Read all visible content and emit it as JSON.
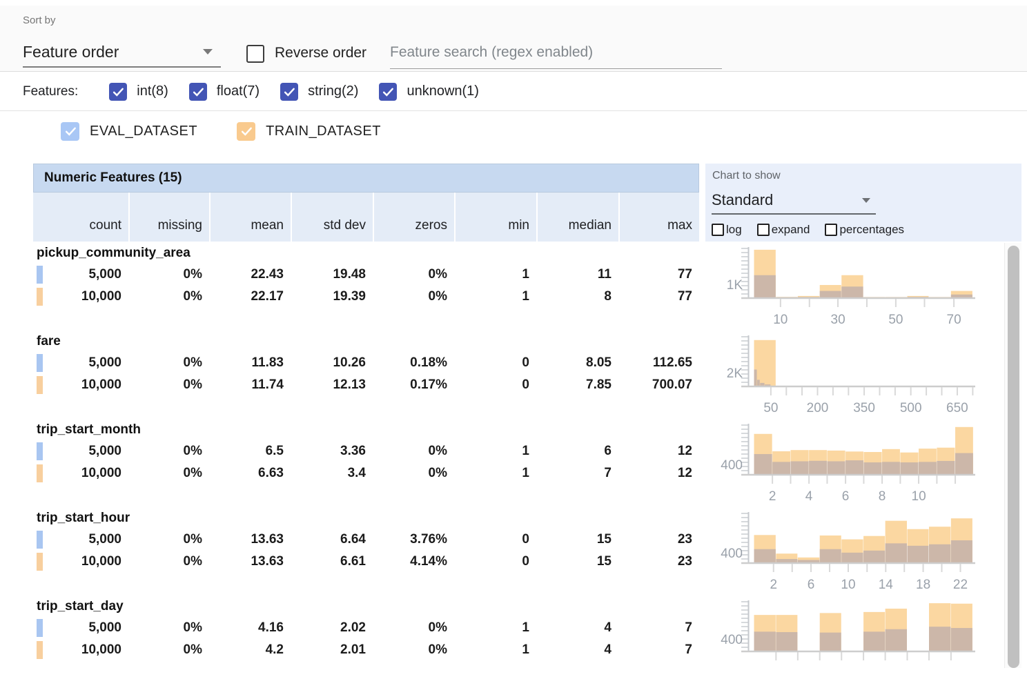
{
  "toolbar": {
    "sort_by_label": "Sort by",
    "sort_value": "Feature order",
    "reverse_label": "Reverse order",
    "search_placeholder": "Feature search (regex enabled)"
  },
  "filters": {
    "label": "Features:",
    "types": [
      {
        "label": "int(8)",
        "checked": true
      },
      {
        "label": "float(7)",
        "checked": true
      },
      {
        "label": "string(2)",
        "checked": true
      },
      {
        "label": "unknown(1)",
        "checked": true
      }
    ]
  },
  "datasets": [
    {
      "name": "EVAL_DATASET",
      "color": "#a9c7f5",
      "count_label": "5,000"
    },
    {
      "name": "TRAIN_DATASET",
      "color": "#f9ca8e",
      "count_label": "10,000"
    }
  ],
  "table": {
    "title": "Numeric Features (15)",
    "columns": [
      "count",
      "missing",
      "mean",
      "std dev",
      "zeros",
      "min",
      "median",
      "max"
    ],
    "rows": [
      {
        "feature": "pickup_community_area",
        "eval": [
          "5,000",
          "0%",
          "22.43",
          "19.48",
          "0%",
          "1",
          "11",
          "77"
        ],
        "train": [
          "10,000",
          "0%",
          "22.17",
          "19.39",
          "0%",
          "1",
          "8",
          "77"
        ]
      },
      {
        "feature": "fare",
        "eval": [
          "5,000",
          "0%",
          "11.83",
          "10.26",
          "0.18%",
          "0",
          "8.05",
          "112.65"
        ],
        "train": [
          "10,000",
          "0%",
          "11.74",
          "12.13",
          "0.17%",
          "0",
          "7.85",
          "700.07"
        ]
      },
      {
        "feature": "trip_start_month",
        "eval": [
          "5,000",
          "0%",
          "6.5",
          "3.36",
          "0%",
          "1",
          "6",
          "12"
        ],
        "train": [
          "10,000",
          "0%",
          "6.63",
          "3.4",
          "0%",
          "1",
          "7",
          "12"
        ]
      },
      {
        "feature": "trip_start_hour",
        "eval": [
          "5,000",
          "0%",
          "13.63",
          "6.64",
          "3.76%",
          "0",
          "15",
          "23"
        ],
        "train": [
          "10,000",
          "0%",
          "13.63",
          "6.61",
          "4.14%",
          "0",
          "15",
          "23"
        ]
      },
      {
        "feature": "trip_start_day",
        "eval": [
          "5,000",
          "0%",
          "4.16",
          "2.02",
          "0%",
          "1",
          "4",
          "7"
        ],
        "train": [
          "10,000",
          "0%",
          "4.2",
          "2.01",
          "0%",
          "1",
          "4",
          "7"
        ]
      }
    ]
  },
  "chart_controls": {
    "label": "Chart to show",
    "value": "Standard",
    "options": [
      "log",
      "expand",
      "percentages"
    ]
  },
  "chart_data": [
    {
      "feature": "pickup_community_area",
      "type": "histogram",
      "legend": [
        "EVAL_DATASET",
        "TRAIN_DATASET"
      ],
      "ylabel": "1K",
      "ylabel_frac": 0.27,
      "ymax": 3700,
      "xlabels": [
        {
          "t": "10",
          "f": 0.138
        },
        {
          "t": "30",
          "f": 0.394
        },
        {
          "t": "50",
          "f": 0.652
        },
        {
          "t": "70",
          "f": 0.911
        }
      ],
      "xticks": [
        0.138,
        0.267,
        0.394,
        0.523,
        0.652,
        0.78,
        0.911
      ],
      "bins": [
        {
          "x0": 0.02,
          "x1": 0.118,
          "train": 3600,
          "eval": 1680
        },
        {
          "x0": 0.118,
          "x1": 0.215,
          "train": 40,
          "eval": 15
        },
        {
          "x0": 0.215,
          "x1": 0.313,
          "train": 110,
          "eval": 35
        },
        {
          "x0": 0.313,
          "x1": 0.41,
          "train": 940,
          "eval": 490
        },
        {
          "x0": 0.41,
          "x1": 0.508,
          "train": 1680,
          "eval": 820
        },
        {
          "x0": 0.508,
          "x1": 0.605,
          "train": 30,
          "eval": 10
        },
        {
          "x0": 0.605,
          "x1": 0.703,
          "train": 30,
          "eval": 10
        },
        {
          "x0": 0.703,
          "x1": 0.8,
          "train": 110,
          "eval": 40
        },
        {
          "x0": 0.8,
          "x1": 0.898,
          "train": 30,
          "eval": 10
        },
        {
          "x0": 0.898,
          "x1": 0.995,
          "train": 490,
          "eval": 220
        }
      ]
    },
    {
      "feature": "fare",
      "type": "histogram",
      "legend": [
        "EVAL_DATASET",
        "TRAIN_DATASET"
      ],
      "ylabel": "2K",
      "ylabel_frac": 0.27,
      "ymax": 7400,
      "xlabels": [
        {
          "t": "50",
          "f": 0.095
        },
        {
          "t": "200",
          "f": 0.303
        },
        {
          "t": "350",
          "f": 0.511
        },
        {
          "t": "500",
          "f": 0.719
        },
        {
          "t": "650",
          "f": 0.926
        }
      ],
      "xticks": [
        0.095,
        0.164,
        0.234,
        0.303,
        0.372,
        0.441,
        0.511,
        0.58,
        0.649,
        0.719,
        0.788,
        0.857,
        0.926,
        0.995
      ],
      "bins": [
        {
          "x0": 0.02,
          "x1": 0.118,
          "train": 6900,
          "eval": 0
        },
        {
          "x0": 0.02,
          "x1": 0.034,
          "train": 0,
          "eval": 2450
        },
        {
          "x0": 0.034,
          "x1": 0.047,
          "train": 0,
          "eval": 900
        },
        {
          "x0": 0.047,
          "x1": 0.068,
          "train": 0,
          "eval": 430
        },
        {
          "x0": 0.068,
          "x1": 0.095,
          "train": 0,
          "eval": 200
        }
      ]
    },
    {
      "feature": "trip_start_month",
      "type": "histogram",
      "legend": [
        "EVAL_DATASET",
        "TRAIN_DATASET"
      ],
      "ylabel": "400",
      "ylabel_frac": 0.2,
      "ymax": 2030,
      "xlabels": [
        {
          "t": "2",
          "f": 0.102
        },
        {
          "t": "4",
          "f": 0.265
        },
        {
          "t": "6",
          "f": 0.428
        },
        {
          "t": "8",
          "f": 0.591
        },
        {
          "t": "10",
          "f": 0.754
        }
      ],
      "xticks": [
        0.102,
        0.183,
        0.265,
        0.346,
        0.428,
        0.509,
        0.591,
        0.672,
        0.754,
        0.835,
        0.917
      ],
      "bins": [
        {
          "x0": 0.02,
          "x1": 0.102,
          "train": 1665,
          "eval": 830
        },
        {
          "x0": 0.102,
          "x1": 0.183,
          "train": 945,
          "eval": 505
        },
        {
          "x0": 0.183,
          "x1": 0.265,
          "train": 995,
          "eval": 530
        },
        {
          "x0": 0.265,
          "x1": 0.346,
          "train": 995,
          "eval": 550
        },
        {
          "x0": 0.346,
          "x1": 0.428,
          "train": 975,
          "eval": 530
        },
        {
          "x0": 0.428,
          "x1": 0.509,
          "train": 935,
          "eval": 570
        },
        {
          "x0": 0.509,
          "x1": 0.591,
          "train": 915,
          "eval": 485
        },
        {
          "x0": 0.591,
          "x1": 0.672,
          "train": 1035,
          "eval": 505
        },
        {
          "x0": 0.672,
          "x1": 0.754,
          "train": 895,
          "eval": 485
        },
        {
          "x0": 0.754,
          "x1": 0.835,
          "train": 1055,
          "eval": 505
        },
        {
          "x0": 0.835,
          "x1": 0.917,
          "train": 1095,
          "eval": 545
        },
        {
          "x0": 0.917,
          "x1": 0.998,
          "train": 1950,
          "eval": 870
        }
      ]
    },
    {
      "feature": "trip_start_hour",
      "type": "histogram",
      "legend": [
        "EVAL_DATASET",
        "TRAIN_DATASET"
      ],
      "ylabel": "400",
      "ylabel_frac": 0.2,
      "ymax": 2030,
      "xlabels": [
        {
          "t": "2",
          "f": 0.107
        },
        {
          "t": "6",
          "f": 0.274
        },
        {
          "t": "10",
          "f": 0.44
        },
        {
          "t": "14",
          "f": 0.607
        },
        {
          "t": "18",
          "f": 0.774
        },
        {
          "t": "22",
          "f": 0.94
        }
      ],
      "xticks": [
        0.107,
        0.19,
        0.274,
        0.357,
        0.44,
        0.524,
        0.607,
        0.69,
        0.774,
        0.857,
        0.94
      ],
      "bins": [
        {
          "x0": 0.02,
          "x1": 0.118,
          "train": 1135,
          "eval": 550
        },
        {
          "x0": 0.118,
          "x1": 0.215,
          "train": 365,
          "eval": 140
        },
        {
          "x0": 0.215,
          "x1": 0.313,
          "train": 205,
          "eval": 100
        },
        {
          "x0": 0.313,
          "x1": 0.41,
          "train": 1115,
          "eval": 550
        },
        {
          "x0": 0.41,
          "x1": 0.508,
          "train": 955,
          "eval": 405
        },
        {
          "x0": 0.508,
          "x1": 0.605,
          "train": 1095,
          "eval": 490
        },
        {
          "x0": 0.605,
          "x1": 0.703,
          "train": 1725,
          "eval": 790
        },
        {
          "x0": 0.703,
          "x1": 0.8,
          "train": 1380,
          "eval": 690
        },
        {
          "x0": 0.8,
          "x1": 0.898,
          "train": 1480,
          "eval": 750
        },
        {
          "x0": 0.898,
          "x1": 0.995,
          "train": 1825,
          "eval": 915
        }
      ]
    },
    {
      "feature": "trip_start_day",
      "type": "histogram",
      "legend": [
        "EVAL_DATASET",
        "TRAIN_DATASET"
      ],
      "ylabel": "400",
      "ylabel_frac": 0.24,
      "ymax": 1670,
      "xlabels": [],
      "xticks": [
        0.118,
        0.215,
        0.313,
        0.41,
        0.508,
        0.605,
        0.703,
        0.8,
        0.898
      ],
      "bins": [
        {
          "x0": 0.02,
          "x1": 0.118,
          "train": 1220,
          "eval": 650
        },
        {
          "x0": 0.118,
          "x1": 0.215,
          "train": 1220,
          "eval": 635
        },
        {
          "x0": 0.313,
          "x1": 0.41,
          "train": 1285,
          "eval": 620
        },
        {
          "x0": 0.508,
          "x1": 0.605,
          "train": 1320,
          "eval": 650
        },
        {
          "x0": 0.605,
          "x1": 0.703,
          "train": 1435,
          "eval": 735
        },
        {
          "x0": 0.8,
          "x1": 0.898,
          "train": 1620,
          "eval": 820
        },
        {
          "x0": 0.898,
          "x1": 0.995,
          "train": 1605,
          "eval": 775
        }
      ]
    }
  ],
  "colors": {
    "accent_indigo": "#4355b5",
    "eval_checkbox": "#a9c7f5",
    "train_checkbox": "#f9ca8e",
    "eval_marker": "#a9c6f1",
    "train_marker": "#f8cf9e",
    "hist_train": "#fbd7a1",
    "hist_overlap": "#ccb7a9",
    "table_header": "#c7d9f0",
    "column_header": "#e4ecf7",
    "chart_panel": "#e9effa"
  }
}
